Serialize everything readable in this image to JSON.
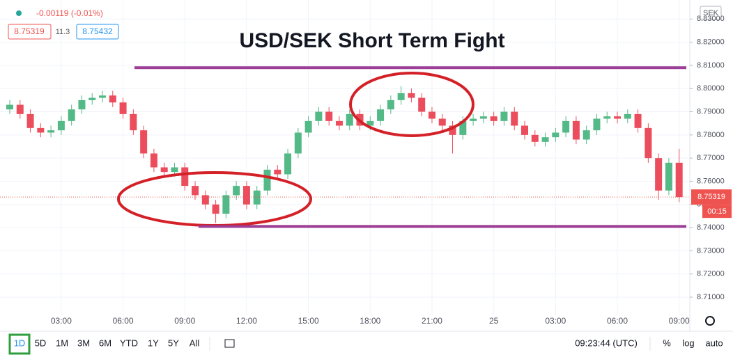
{
  "chart_data": {
    "type": "candlestick",
    "title": "USD/SEK Short Term Fight",
    "categories": [
      null,
      null,
      null,
      null,
      null,
      "03:00",
      null,
      null,
      null,
      null,
      null,
      "06:00",
      null,
      null,
      null,
      null,
      null,
      "09:00",
      null,
      null,
      null,
      null,
      null,
      "12:00",
      null,
      null,
      null,
      null,
      null,
      "15:00",
      null,
      null,
      null,
      null,
      null,
      "18:00",
      null,
      null,
      null,
      null,
      null,
      "21:00",
      null,
      null,
      null,
      null,
      null,
      "25",
      null,
      null,
      null,
      null,
      null,
      "03:00",
      null,
      null,
      null,
      null,
      null,
      "06:00",
      null,
      null,
      null,
      null,
      null,
      "09:00"
    ],
    "open": [
      8.791,
      8.793,
      8.789,
      8.783,
      8.781,
      8.782,
      8.786,
      8.791,
      8.795,
      8.796,
      8.797,
      8.794,
      8.789,
      8.782,
      8.772,
      8.766,
      8.764,
      8.766,
      8.758,
      8.754,
      8.75,
      8.746,
      8.754,
      8.758,
      8.75,
      8.756,
      8.765,
      8.763,
      8.772,
      8.781,
      8.786,
      8.79,
      8.786,
      8.784,
      8.789,
      8.784,
      8.786,
      8.791,
      8.795,
      8.798,
      8.796,
      8.79,
      8.787,
      8.784,
      8.78,
      8.786,
      8.787,
      8.788,
      8.786,
      8.79,
      8.784,
      8.78,
      8.777,
      8.779,
      8.781,
      8.786,
      8.778,
      8.782,
      8.787,
      8.788,
      8.787,
      8.789,
      8.783,
      8.77,
      8.756,
      8.768
    ],
    "high": [
      8.795,
      8.795,
      8.791,
      8.785,
      8.784,
      8.788,
      8.793,
      8.797,
      8.798,
      8.799,
      8.799,
      8.796,
      8.791,
      8.784,
      8.774,
      8.768,
      8.768,
      8.768,
      8.76,
      8.756,
      8.752,
      8.756,
      8.76,
      8.76,
      8.758,
      8.767,
      8.767,
      8.774,
      8.783,
      8.788,
      8.792,
      8.792,
      8.788,
      8.791,
      8.791,
      8.788,
      8.793,
      8.797,
      8.801,
      8.8,
      8.798,
      8.792,
      8.789,
      8.786,
      8.788,
      8.789,
      8.79,
      8.79,
      8.792,
      8.792,
      8.786,
      8.782,
      8.781,
      8.783,
      8.788,
      8.788,
      8.784,
      8.789,
      8.79,
      8.79,
      8.791,
      8.791,
      8.785,
      8.772,
      8.77,
      8.774
    ],
    "low": [
      8.789,
      8.787,
      8.781,
      8.779,
      8.779,
      8.78,
      8.784,
      8.789,
      8.793,
      8.794,
      8.792,
      8.787,
      8.78,
      8.77,
      8.764,
      8.762,
      8.762,
      8.756,
      8.752,
      8.748,
      8.742,
      8.744,
      8.752,
      8.748,
      8.748,
      8.754,
      8.761,
      8.761,
      8.77,
      8.779,
      8.784,
      8.784,
      8.782,
      8.782,
      8.782,
      8.782,
      8.784,
      8.789,
      8.793,
      8.794,
      8.788,
      8.785,
      8.782,
      8.772,
      8.778,
      8.784,
      8.785,
      8.784,
      8.784,
      8.782,
      8.778,
      8.775,
      8.775,
      8.777,
      8.779,
      8.776,
      8.776,
      8.78,
      8.785,
      8.785,
      8.785,
      8.781,
      8.768,
      8.752,
      8.754,
      8.751
    ],
    "close": [
      8.793,
      8.789,
      8.783,
      8.781,
      8.782,
      8.786,
      8.791,
      8.795,
      8.796,
      8.797,
      8.794,
      8.789,
      8.782,
      8.772,
      8.766,
      8.764,
      8.766,
      8.758,
      8.754,
      8.75,
      8.746,
      8.754,
      8.758,
      8.75,
      8.756,
      8.765,
      8.763,
      8.772,
      8.781,
      8.786,
      8.79,
      8.786,
      8.784,
      8.789,
      8.784,
      8.786,
      8.791,
      8.795,
      8.798,
      8.796,
      8.79,
      8.787,
      8.784,
      8.78,
      8.786,
      8.787,
      8.788,
      8.786,
      8.79,
      8.784,
      8.78,
      8.777,
      8.779,
      8.781,
      8.786,
      8.778,
      8.782,
      8.787,
      8.788,
      8.787,
      8.789,
      8.783,
      8.77,
      8.756,
      8.768,
      8.75319
    ],
    "up_color": "#53b987",
    "down_color": "#eb4d5c",
    "ylim": [
      8.7022,
      8.8382
    ],
    "yticks": [
      {
        "value": 8.71,
        "label": "8.71000"
      },
      {
        "value": 8.72,
        "label": "8.72000"
      },
      {
        "value": 8.73,
        "label": "8.73000"
      },
      {
        "value": 8.74,
        "label": "8.74000"
      },
      {
        "value": 8.75,
        "label": "8.75000"
      },
      {
        "value": 8.76,
        "label": "8.76000"
      },
      {
        "value": 8.77,
        "label": "8.77000"
      },
      {
        "value": 8.78,
        "label": "8.78000"
      },
      {
        "value": 8.79,
        "label": "8.79000"
      },
      {
        "value": 8.8,
        "label": "8.80000"
      },
      {
        "value": 8.81,
        "label": "8.81000"
      },
      {
        "value": 8.82,
        "label": "8.82000"
      },
      {
        "value": 8.83,
        "label": "8.83000"
      }
    ],
    "hlines": [
      {
        "value": 8.809,
        "color": "#9c3d96"
      },
      {
        "value": 8.7405,
        "color": "#9c3d96"
      }
    ],
    "last_price": {
      "value": 8.75319,
      "label": "8.75319"
    },
    "countdown": "00:15",
    "currency": "SEK"
  },
  "header": {
    "change": "-0.00119 (-0.01%)",
    "bid": "8.75319",
    "spread": "11.3",
    "ask": "8.75432"
  },
  "toolbar": {
    "timeframes": [
      "1D",
      "5D",
      "1M",
      "3M",
      "6M",
      "YTD",
      "1Y",
      "5Y",
      "All"
    ],
    "clock": "09:23:44 (UTC)",
    "percent": "%",
    "log": "log",
    "auto": "auto"
  }
}
